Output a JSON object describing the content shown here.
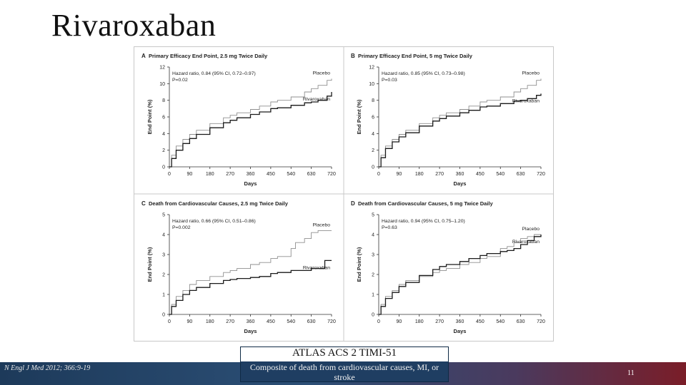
{
  "slide": {
    "title": "Rivaroxaban",
    "caption_title": "ATLAS ACS 2 TIMI-51",
    "caption_sub": "Composite of death from cardiovascular causes, MI, or stroke",
    "citation": "N Engl J Med 2012; 366:9-19",
    "page_number": "11"
  },
  "colors": {
    "placebo": "#8f8f8f",
    "rivaroxaban": "#1a1a1a",
    "axis": "#333333",
    "bar_dark": "#1d3a5a",
    "bar_red": "#7a1d28"
  },
  "chart_data": [
    {
      "type": "line",
      "panel_letter": "A",
      "title": "Primary Efficacy End Point, 2.5 mg Twice Daily",
      "xlabel": "Days",
      "ylabel": "End Point (%)",
      "xticks": [
        0,
        90,
        180,
        270,
        360,
        450,
        540,
        630,
        720
      ],
      "yticks": [
        0,
        2,
        4,
        6,
        8,
        10,
        12
      ],
      "xlim": [
        0,
        720
      ],
      "ylim": [
        0,
        12
      ],
      "annotation": [
        "Hazard ratio, 0.84 (95% CI, 0.72–0.97)",
        "P=0.02"
      ],
      "series": [
        {
          "name": "Placebo",
          "x": [
            0,
            10,
            30,
            60,
            90,
            120,
            180,
            240,
            270,
            300,
            360,
            400,
            450,
            480,
            540,
            600,
            630,
            660,
            700,
            720
          ],
          "y": [
            0,
            1.4,
            2.5,
            3.3,
            3.9,
            4.4,
            5.2,
            5.9,
            6.2,
            6.5,
            6.9,
            7.3,
            7.8,
            8.0,
            8.4,
            9.0,
            9.4,
            9.8,
            10.4,
            10.6
          ]
        },
        {
          "name": "Rivaroxaban",
          "x": [
            0,
            10,
            30,
            60,
            90,
            120,
            180,
            240,
            270,
            300,
            360,
            400,
            450,
            480,
            540,
            600,
            630,
            660,
            700,
            720
          ],
          "y": [
            0,
            1.0,
            2.0,
            2.8,
            3.4,
            3.9,
            4.7,
            5.3,
            5.6,
            5.9,
            6.3,
            6.6,
            7.0,
            7.1,
            7.4,
            7.7,
            7.8,
            8.0,
            8.5,
            9.0
          ]
        }
      ],
      "grid": false
    },
    {
      "type": "line",
      "panel_letter": "B",
      "title": "Primary Efficacy End Point, 5 mg Twice Daily",
      "xlabel": "Days",
      "ylabel": "End Point (%)",
      "xticks": [
        0,
        90,
        180,
        270,
        360,
        450,
        540,
        630,
        720
      ],
      "yticks": [
        0,
        2,
        4,
        6,
        8,
        10,
        12
      ],
      "xlim": [
        0,
        720
      ],
      "ylim": [
        0,
        12
      ],
      "annotation": [
        "Hazard ratio, 0.85 (95% CI, 0.73–0.98)",
        "P=0.03"
      ],
      "series": [
        {
          "name": "Placebo",
          "x": [
            0,
            10,
            30,
            60,
            90,
            120,
            180,
            240,
            270,
            300,
            360,
            400,
            450,
            480,
            540,
            600,
            630,
            660,
            700,
            720
          ],
          "y": [
            0,
            1.4,
            2.5,
            3.3,
            3.9,
            4.4,
            5.2,
            5.9,
            6.2,
            6.5,
            6.9,
            7.3,
            7.8,
            8.0,
            8.4,
            9.0,
            9.4,
            9.8,
            10.4,
            10.6
          ]
        },
        {
          "name": "Rivaroxaban",
          "x": [
            0,
            10,
            30,
            60,
            90,
            120,
            180,
            240,
            270,
            300,
            360,
            400,
            450,
            480,
            540,
            600,
            630,
            660,
            700,
            720
          ],
          "y": [
            0,
            1.1,
            2.2,
            3.0,
            3.6,
            4.1,
            4.9,
            5.5,
            5.8,
            6.1,
            6.5,
            6.8,
            7.2,
            7.3,
            7.6,
            7.9,
            8.0,
            8.2,
            8.6,
            8.8
          ]
        }
      ],
      "grid": false
    },
    {
      "type": "line",
      "panel_letter": "C",
      "title": "Death from Cardiovascular Causes, 2.5 mg Twice Daily",
      "xlabel": "Days",
      "ylabel": "End Point (%)",
      "xticks": [
        0,
        90,
        180,
        270,
        360,
        450,
        540,
        630,
        720
      ],
      "yticks": [
        0,
        1,
        2,
        3,
        4,
        5
      ],
      "xlim": [
        0,
        720
      ],
      "ylim": [
        0,
        5
      ],
      "annotation": [
        "Hazard ratio, 0.66 (95% CI, 0.51–0.86)",
        "P=0.002"
      ],
      "series": [
        {
          "name": "Placebo",
          "x": [
            0,
            10,
            30,
            60,
            90,
            120,
            180,
            240,
            270,
            300,
            360,
            400,
            450,
            480,
            540,
            560,
            600,
            630,
            660,
            690,
            720
          ],
          "y": [
            0,
            0.5,
            0.9,
            1.2,
            1.5,
            1.7,
            1.9,
            2.1,
            2.2,
            2.3,
            2.5,
            2.6,
            2.8,
            2.9,
            3.3,
            3.6,
            3.8,
            4.1,
            4.2,
            4.2,
            4.2
          ]
        },
        {
          "name": "Rivaroxaban",
          "x": [
            0,
            10,
            30,
            60,
            90,
            120,
            180,
            240,
            270,
            300,
            360,
            400,
            450,
            480,
            540,
            560,
            600,
            630,
            660,
            690,
            720
          ],
          "y": [
            0,
            0.4,
            0.7,
            1.0,
            1.2,
            1.35,
            1.55,
            1.7,
            1.75,
            1.8,
            1.85,
            1.9,
            2.05,
            2.1,
            2.2,
            2.2,
            2.2,
            2.3,
            2.3,
            2.7,
            2.7
          ]
        }
      ],
      "grid": false
    },
    {
      "type": "line",
      "panel_letter": "D",
      "title": "Death from Cardiovascular Causes, 5 mg Twice Daily",
      "xlabel": "Days",
      "ylabel": "End Point (%)",
      "xticks": [
        0,
        90,
        180,
        270,
        360,
        450,
        540,
        630,
        720
      ],
      "yticks": [
        0,
        1,
        2,
        3,
        4,
        5
      ],
      "xlim": [
        0,
        720
      ],
      "ylim": [
        0,
        5
      ],
      "annotation": [
        "Hazard ratio, 0.94 (95% CI, 0.75–1.20)",
        "P=0.63"
      ],
      "series": [
        {
          "name": "Placebo",
          "x": [
            0,
            10,
            30,
            60,
            90,
            120,
            180,
            240,
            270,
            300,
            360,
            400,
            450,
            480,
            540,
            570,
            600,
            630,
            660,
            690,
            720
          ],
          "y": [
            0,
            0.5,
            0.9,
            1.2,
            1.5,
            1.7,
            1.9,
            2.1,
            2.2,
            2.3,
            2.5,
            2.6,
            2.8,
            2.9,
            3.3,
            3.4,
            3.6,
            3.8,
            3.9,
            4.0,
            4.0
          ]
        },
        {
          "name": "Rivaroxaban",
          "x": [
            0,
            10,
            30,
            60,
            90,
            120,
            180,
            240,
            270,
            300,
            360,
            400,
            450,
            480,
            540,
            570,
            600,
            630,
            660,
            690,
            720
          ],
          "y": [
            0,
            0.4,
            0.8,
            1.1,
            1.4,
            1.6,
            1.95,
            2.25,
            2.4,
            2.5,
            2.65,
            2.8,
            2.95,
            3.05,
            3.15,
            3.2,
            3.3,
            3.5,
            3.7,
            3.9,
            4.0
          ]
        }
      ],
      "grid": false
    }
  ]
}
